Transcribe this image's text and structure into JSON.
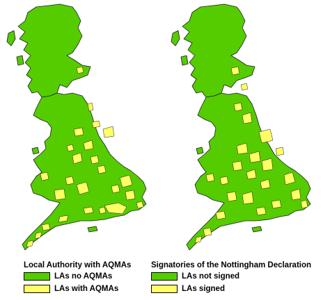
{
  "maps": [
    {
      "legend_title": "Local Authority with AQMAs",
      "items": [
        {
          "label": "LAs no AQMAs",
          "color": "#55cc00"
        },
        {
          "label": "LAs with AQMAs",
          "color": "#ffff66"
        }
      ]
    },
    {
      "legend_title": "Signatories of the Nottingham Declaration",
      "items": [
        {
          "label": "LAs not signed",
          "color": "#55cc00"
        },
        {
          "label": "LAs signed",
          "color": "#ffff66"
        }
      ]
    }
  ],
  "colors": {
    "land": "#55cc00",
    "highlight": "#ffff66",
    "border": "#1a1a1a"
  }
}
